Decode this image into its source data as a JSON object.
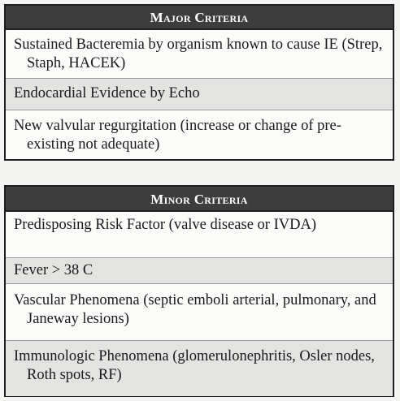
{
  "major": {
    "title": "Major Criteria",
    "rows": [
      "Sustained Bacteremia by organism known to cause IE (Strep, Staph, HACEK)",
      "Endocardial Evidence by Echo",
      "New valvular regurgitation (increase or change of pre-existing not adequate)"
    ]
  },
  "minor": {
    "title": "Minor Criteria",
    "rows": [
      "Predisposing Risk Factor (valve disease or IVDA)",
      "Fever > 38 C",
      "Vascular Phenomena (septic emboli arterial, pulmonary, and Janeway lesions)",
      "Immunologic Phenomena (glomerulonephritis, Osler nodes, Roth spots, RF)"
    ]
  }
}
